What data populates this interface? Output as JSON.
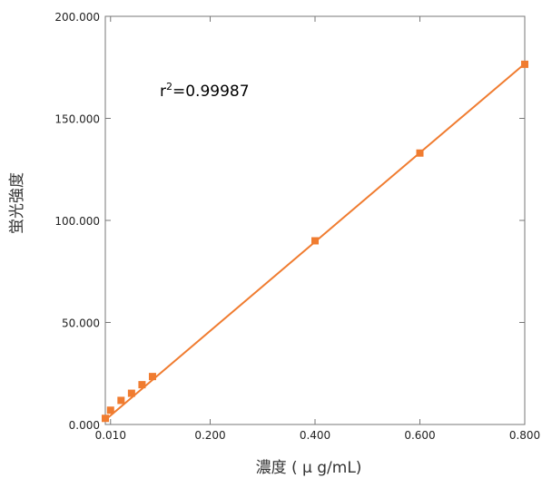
{
  "chart_data": {
    "type": "scatter",
    "xlabel": "濃度 ( μ g/mL)",
    "ylabel": "蛍光強度",
    "xlim": [
      0,
      0.8
    ],
    "ylim": [
      0,
      200000
    ],
    "x_tick_labels": [
      "0.010",
      "0.200",
      "0.400",
      "0.600",
      "0.800"
    ],
    "x_tick_values": [
      0.01,
      0.2,
      0.4,
      0.6,
      0.8
    ],
    "y_tick_labels": [
      "0.000",
      "50.000",
      "100.000",
      "150.000",
      "200.000"
    ],
    "y_tick_values": [
      0,
      50000,
      100000,
      150000,
      200000
    ],
    "annotation": {
      "base": "r",
      "sup": "2",
      "text": "=0.99987"
    },
    "series": [
      {
        "color": "#f07c30",
        "x": [
          0.0,
          0.01,
          0.03,
          0.05,
          0.07,
          0.09,
          0.4,
          0.6,
          0.8
        ],
        "y": [
          3000,
          7000,
          11800,
          15300,
          19500,
          23500,
          90000,
          133000,
          176500
        ],
        "fit": {
          "x": [
            0.0,
            0.8
          ],
          "y": [
            2200,
            176800
          ]
        }
      }
    ],
    "grid": false,
    "legend": "none"
  }
}
